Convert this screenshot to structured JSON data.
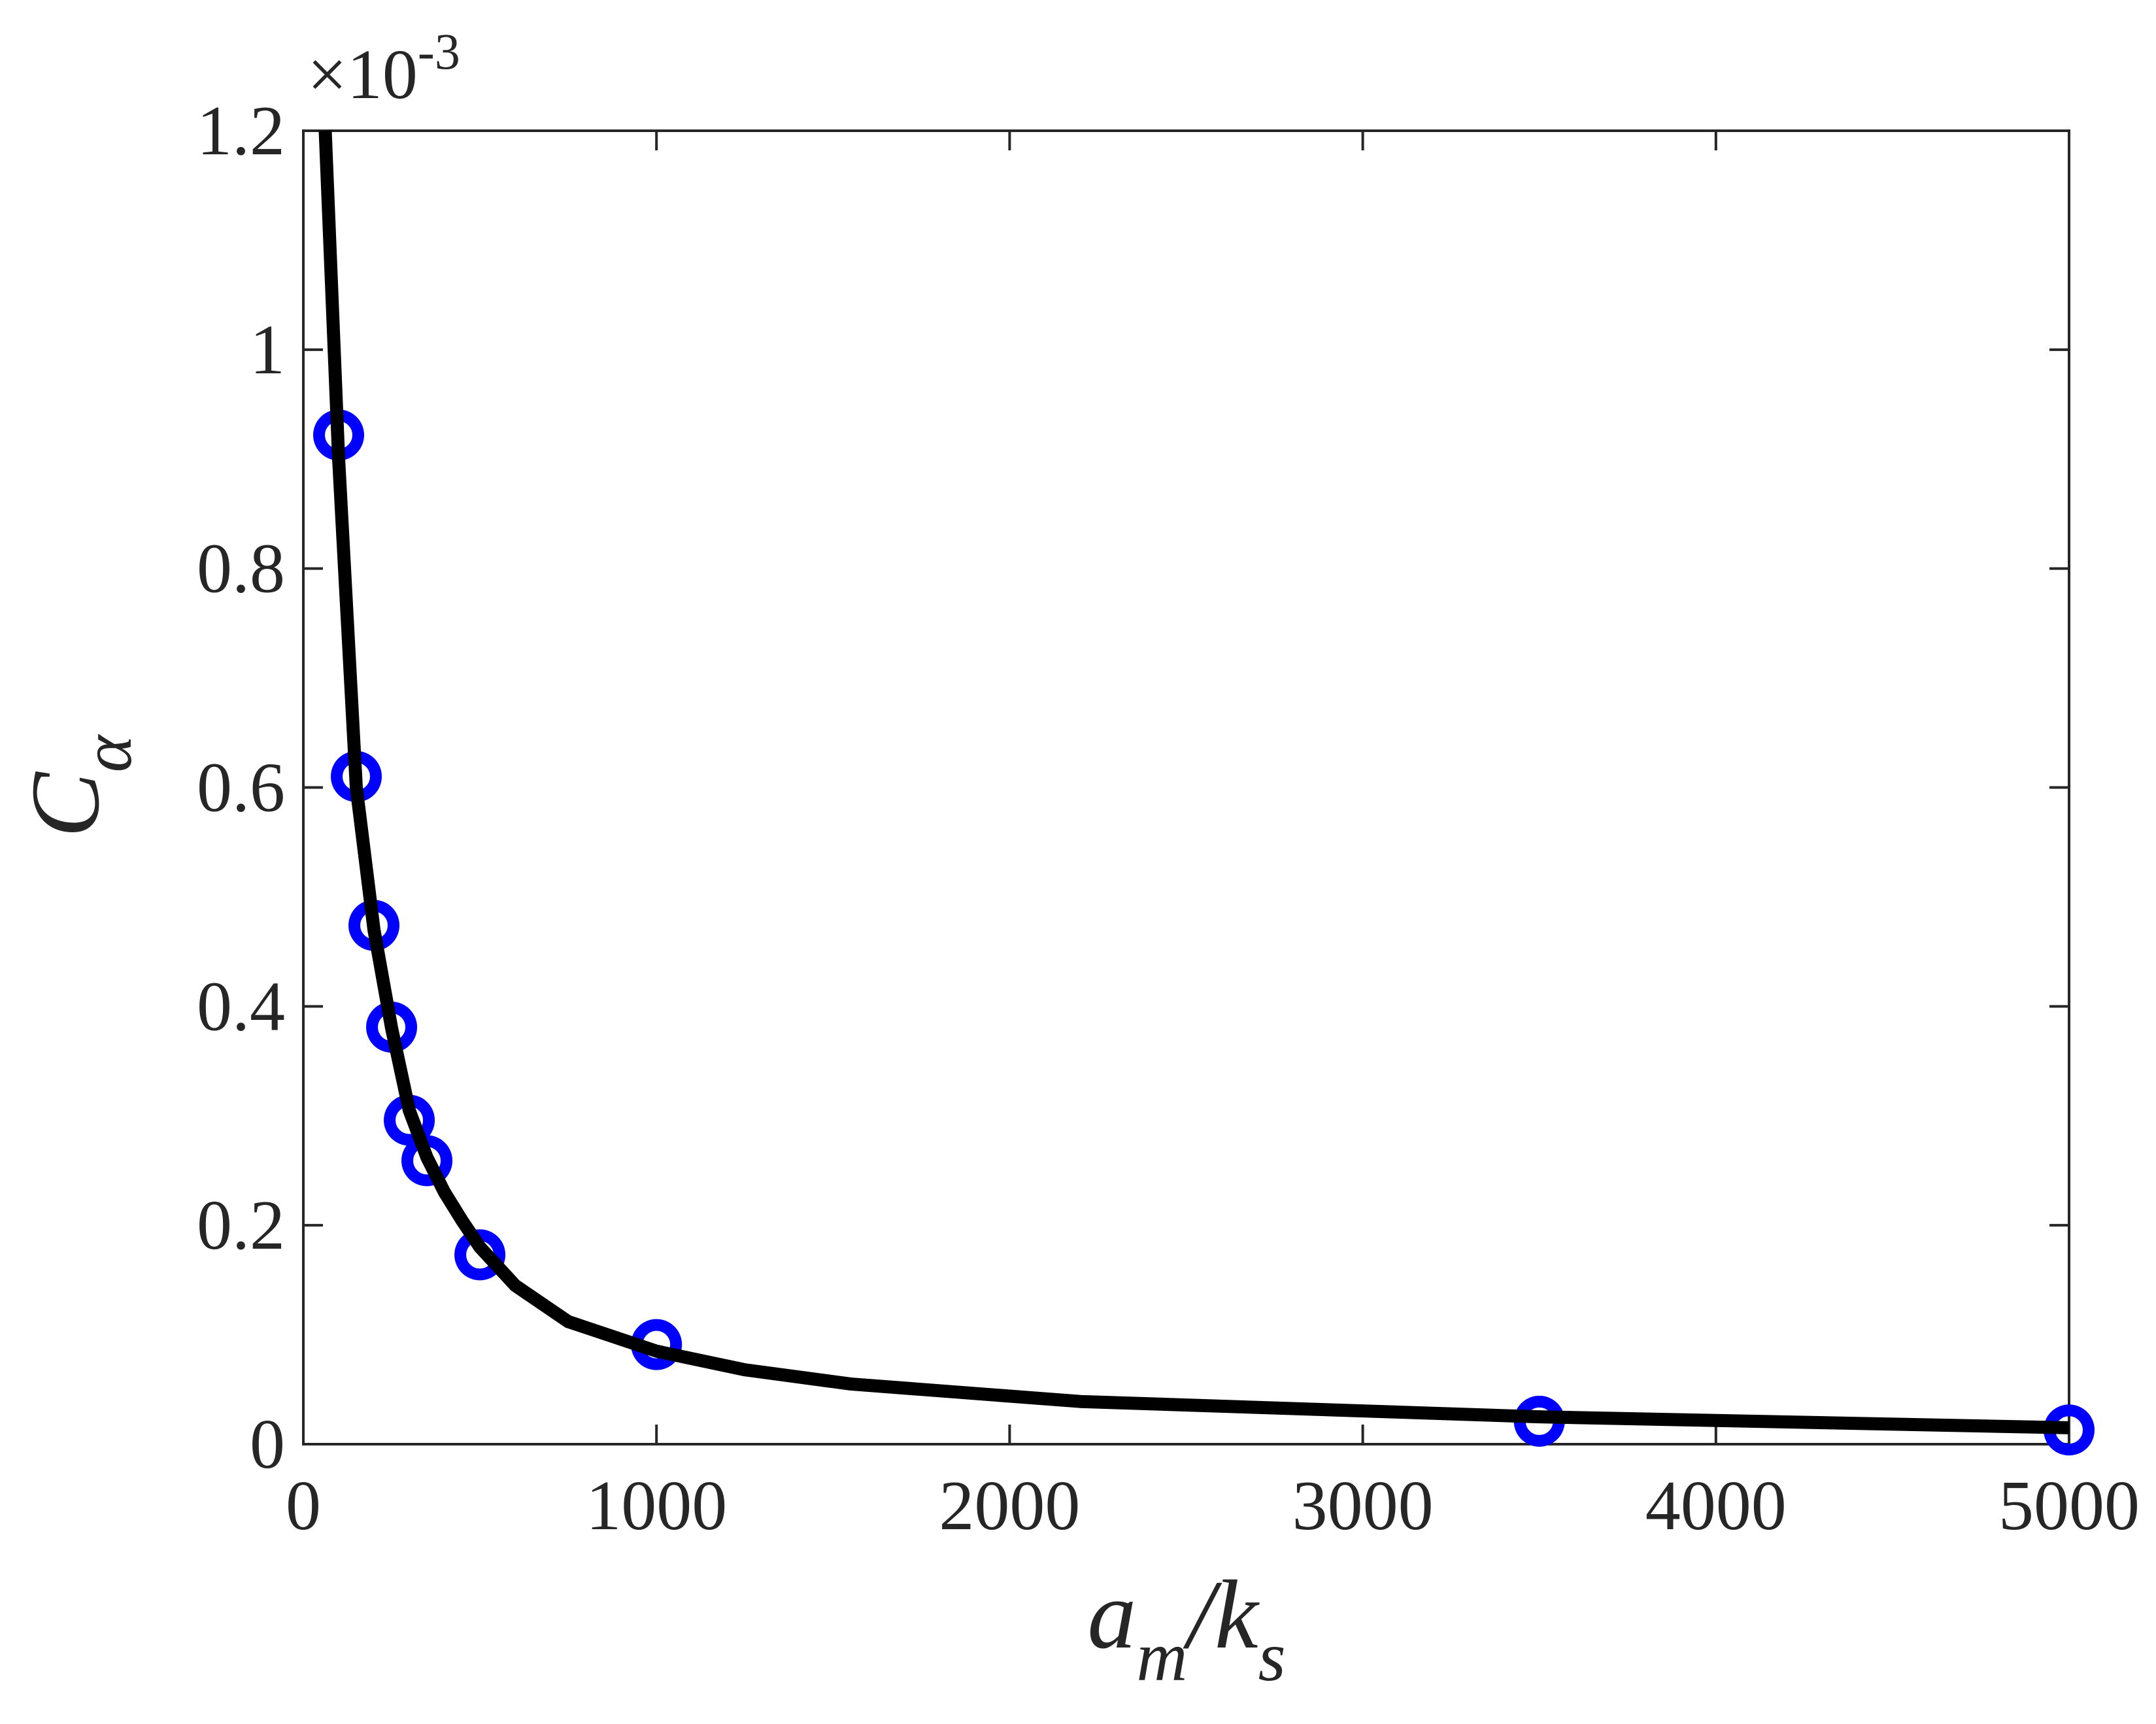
{
  "chart_data": {
    "type": "scatter",
    "xlabel": {
      "main": "a",
      "sub": "m",
      "main2": "/k",
      "sub2": "s"
    },
    "ylabel": {
      "main": "C",
      "sub": "α"
    },
    "y_multiplier": {
      "base": "×10",
      "exponent": "-3"
    },
    "xlim": [
      0,
      5000
    ],
    "xticks": [
      0,
      1000,
      2000,
      3000,
      4000,
      5000
    ],
    "ylim": [
      0,
      1.2
    ],
    "yticks": [
      0,
      0.2,
      0.4,
      0.6,
      0.8,
      1,
      1.2
    ],
    "series": [
      {
        "type": "line",
        "color": "#000000",
        "x": [
          62,
          100,
          150,
          200,
          250,
          300,
          350,
          400,
          450,
          500,
          600,
          750,
          1000,
          1250,
          1550,
          2200,
          3500,
          5000
        ],
        "values": [
          1.2,
          0.9,
          0.6,
          0.47,
          0.38,
          0.305,
          0.262,
          0.23,
          0.204,
          0.18,
          0.145,
          0.112,
          0.085,
          0.068,
          0.055,
          0.039,
          0.025,
          0.015
        ]
      },
      {
        "type": "scatter",
        "color": "#0000ff",
        "x": [
          100,
          150,
          200,
          250,
          300,
          350,
          500,
          1000,
          3500,
          5000
        ],
        "values": [
          0.922,
          0.61,
          0.474,
          0.381,
          0.296,
          0.259,
          0.173,
          0.091,
          0.021,
          0.013
        ]
      }
    ]
  }
}
